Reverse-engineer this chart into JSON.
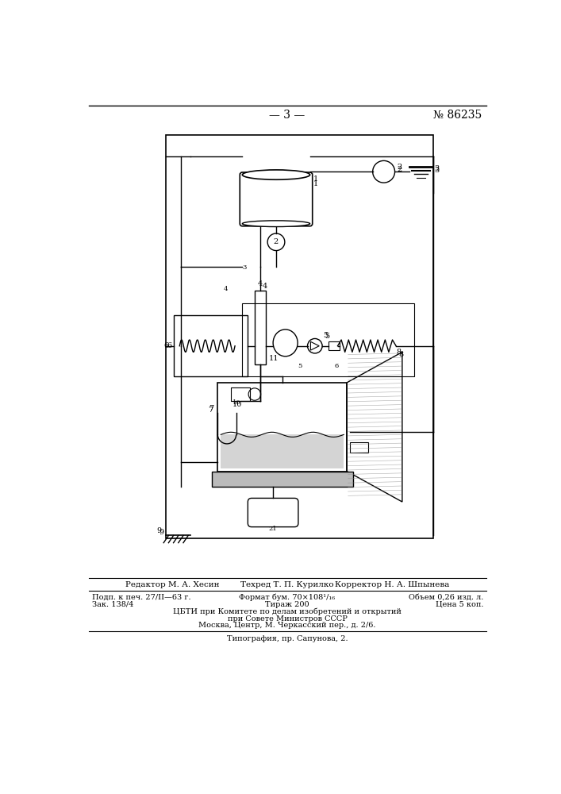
{
  "page_num": "— 3 —",
  "patent_num": "№ 86235",
  "editor_line": "Редактор М. А. Хесин",
  "tech_line": "Техред Т. П. Курилко",
  "corrector_line": "Корректор Н. А. Шпынева",
  "line1_col1": "Подп. к печ. 27/II—63 г.",
  "line1_col2": "Формат бум. 70×108¹/₁₆",
  "line1_col3": "Объем 0,26 изд. л.",
  "line2_col1": "Зак. 138/4",
  "line2_col2": "Тираж 200",
  "line2_col3": "Цена 5 коп.",
  "line3": "ЦБТИ при Комитете по делам изобретений и открытий",
  "line4": "при Совете Министров СССР",
  "line5": "Москва, Центр, М. Черкасский пер., д. 2/6.",
  "line6": "Типография, пр. Сапунова, 2.",
  "bg_color": "#ffffff",
  "text_color": "#000000"
}
